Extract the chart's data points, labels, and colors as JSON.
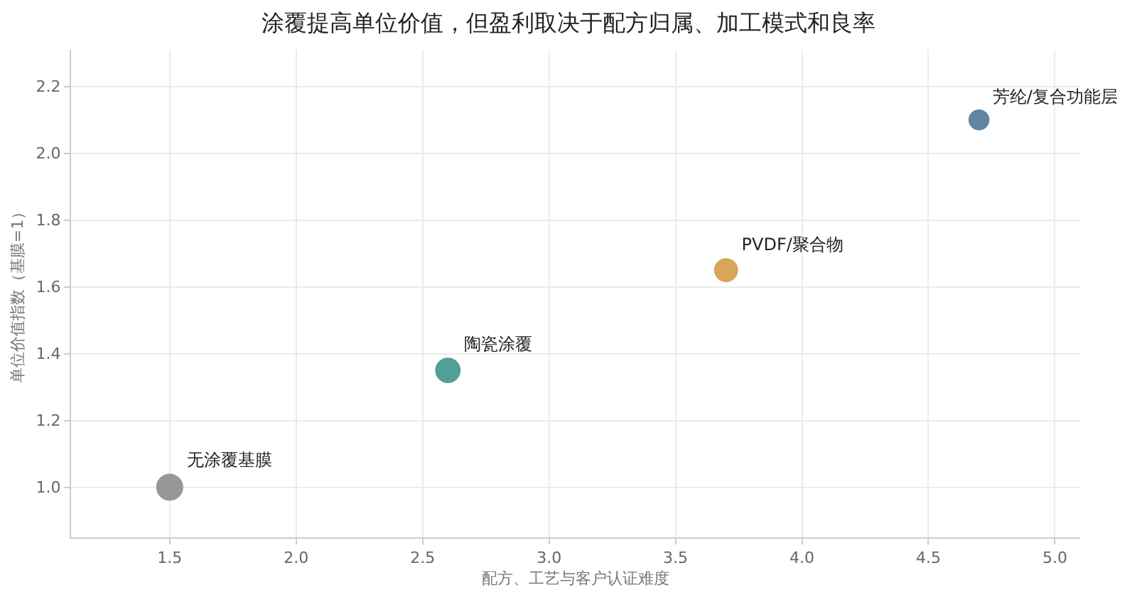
{
  "chart_data": {
    "type": "bubble",
    "title": "涂覆提高单位价值，但盈利取决于配方归属、加工模式和良率",
    "xlabel": "配方、工艺与客户认证难度",
    "ylabel": "单位价值指数（基膜=1）",
    "series": [
      {
        "name": "无涂覆基膜",
        "color": "#8c8c8c",
        "x": [
          1.5
        ],
        "values": [
          1.0
        ],
        "sizes": [
          1
        ]
      },
      {
        "name": "陶瓷涂覆",
        "color": "#3f958a",
        "x": [
          2.6
        ],
        "values": [
          1.35
        ],
        "sizes": [
          0.88
        ]
      },
      {
        "name": "PVDF/聚合物",
        "color": "#d39d45",
        "x": [
          3.7
        ],
        "values": [
          1.65
        ],
        "sizes": [
          0.78
        ]
      },
      {
        "name": "芳纶/复合功能层",
        "color": "#4e7898",
        "x": [
          4.7
        ],
        "values": [
          2.1
        ],
        "sizes": [
          0.58
        ]
      }
    ],
    "xlim": [
      1.11,
      5.1
    ],
    "xticks": [
      1.5,
      {
        "value": 2,
        "label": "2.0"
      },
      2.5,
      {
        "value": 3,
        "label": "3.0"
      },
      3.5,
      {
        "value": 4,
        "label": "4.0"
      },
      4.5,
      {
        "value": 5,
        "label": "5.0"
      }
    ],
    "ylim": [
      0.85,
      2.31
    ],
    "yticks": [
      {
        "value": 1,
        "label": "1.0"
      },
      1.2,
      1.4,
      1.6,
      1.8,
      {
        "value": 2,
        "label": "2.0"
      },
      2.2
    ],
    "grid": true,
    "marker": "circle"
  }
}
